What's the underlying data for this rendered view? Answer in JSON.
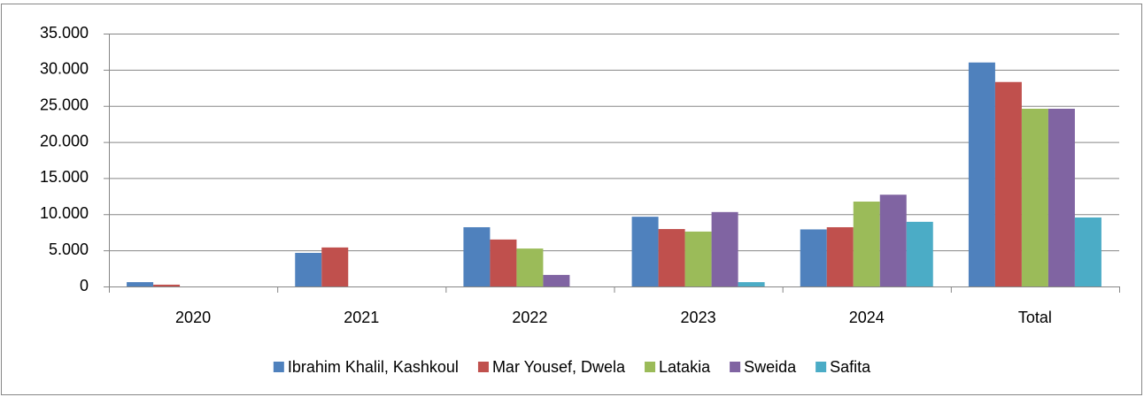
{
  "chart_data": {
    "type": "bar",
    "categories": [
      "2020",
      "2021",
      "2022",
      "2023",
      "2024",
      "Total"
    ],
    "series": [
      {
        "name": "Ibrahim Khalil, Kashkoul",
        "color": "#4f81bd",
        "values": [
          600,
          4650,
          8200,
          9650,
          7900,
          31000
        ]
      },
      {
        "name": "Mar Yousef, Dwela",
        "color": "#c0504d",
        "values": [
          250,
          5400,
          6500,
          7950,
          8200,
          28300
        ]
      },
      {
        "name": "Latakia",
        "color": "#9bbb59",
        "values": [
          0,
          0,
          5250,
          7600,
          11750,
          24600
        ]
      },
      {
        "name": "Sweida",
        "color": "#8064a2",
        "values": [
          0,
          0,
          1600,
          10300,
          12700,
          24600
        ]
      },
      {
        "name": "Safita",
        "color": "#4bacc6",
        "values": [
          0,
          0,
          0,
          600,
          8950,
          9550
        ]
      }
    ],
    "ylim": [
      0,
      35000
    ],
    "yticks": [
      0,
      {
        "value": 5000,
        "label": "5.000"
      },
      {
        "value": 10000,
        "label": "10.000"
      },
      {
        "value": 15000,
        "label": "15.000"
      },
      {
        "value": 20000,
        "label": "20.000"
      },
      {
        "value": 25000,
        "label": "25.000"
      },
      {
        "value": 30000,
        "label": "30.000"
      },
      {
        "value": 35000,
        "label": "35.000"
      }
    ],
    "grid": true,
    "legend": "bottom"
  }
}
